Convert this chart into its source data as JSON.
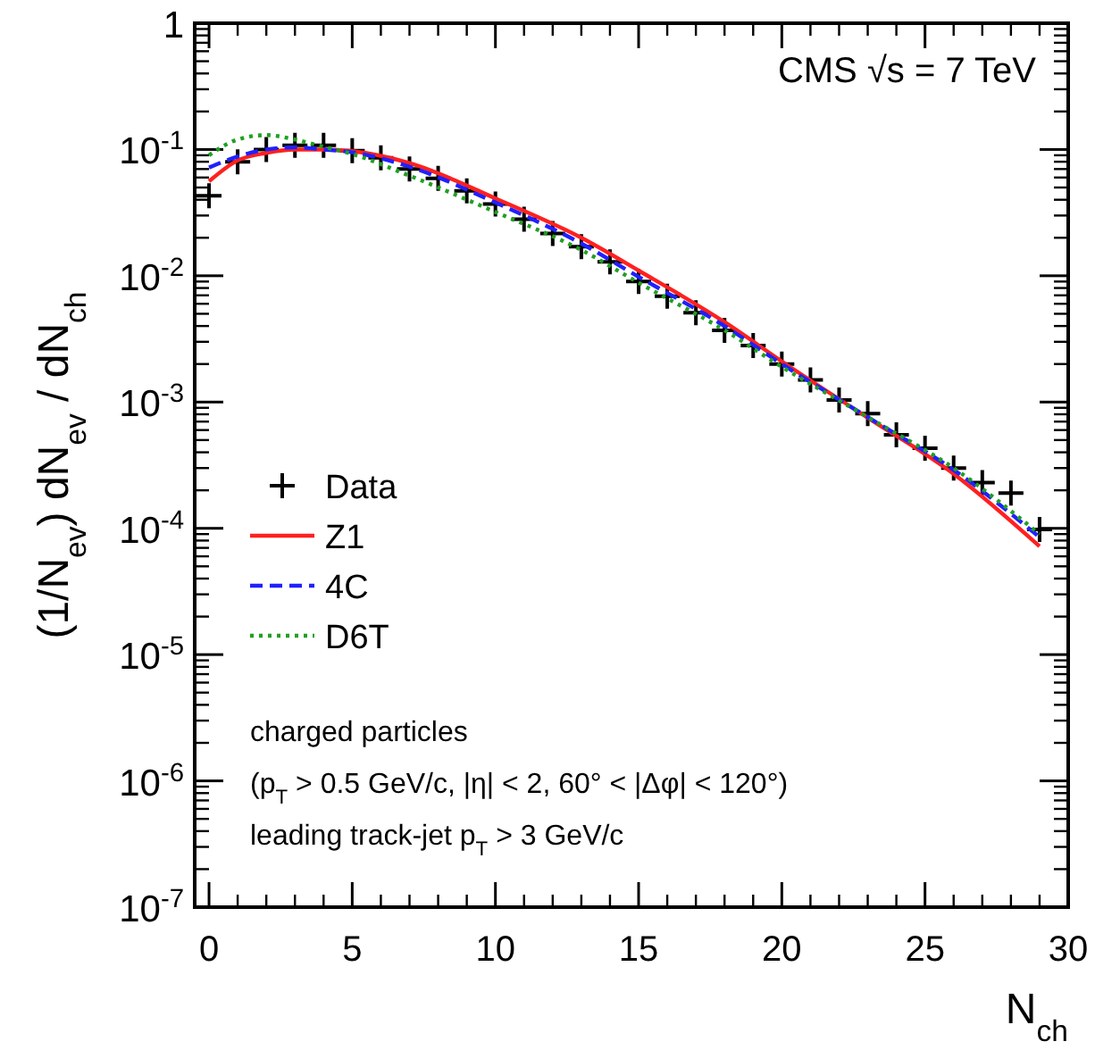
{
  "chart_data": {
    "type": "scatter",
    "xlabel": "N$_{ch}$",
    "ylabel": "(1/N$_{ev}$)  dN$_{ev}$ / dN$_{ch}$",
    "x": [
      0,
      1,
      2,
      3,
      4,
      5,
      6,
      7,
      8,
      9,
      10,
      11,
      12,
      13,
      14,
      15,
      16,
      17,
      18,
      19,
      20,
      21,
      22,
      23,
      24,
      25,
      26,
      27,
      28,
      29
    ],
    "series": [
      {
        "name": "Data",
        "marker": "cross",
        "color": "#000000",
        "values": [
          0.043,
          0.08,
          0.1,
          0.108,
          0.108,
          0.098,
          0.086,
          0.07,
          0.059,
          0.047,
          0.037,
          0.028,
          0.0216,
          0.017,
          0.0129,
          0.009,
          0.0069,
          0.0051,
          0.0037,
          0.0028,
          0.002,
          0.0015,
          0.00104,
          0.00081,
          0.00055,
          0.00043,
          0.0003,
          0.00023,
          0.00019,
          9.8e-05
        ]
      },
      {
        "name": "Z1",
        "type": "line",
        "line_style": "solid",
        "color": "#ff2020",
        "x": [
          0,
          1,
          2,
          3,
          4,
          5,
          7,
          10,
          13,
          15,
          18,
          20,
          23,
          26,
          29
        ],
        "values": [
          0.056,
          0.082,
          0.094,
          0.1,
          0.1,
          0.097,
          0.078,
          0.041,
          0.02,
          0.011,
          0.0043,
          0.0021,
          0.00075,
          0.00027,
          7.2e-05
        ]
      },
      {
        "name": "4C",
        "type": "line",
        "line_style": "dashed",
        "color": "#2020ff",
        "x": [
          0,
          1,
          2,
          3,
          4,
          5,
          7,
          10,
          13,
          15,
          18,
          20,
          23,
          26,
          29
        ],
        "values": [
          0.072,
          0.088,
          0.1,
          0.104,
          0.1,
          0.095,
          0.073,
          0.038,
          0.018,
          0.0098,
          0.004,
          0.002,
          0.00076,
          0.00029,
          8.5e-05
        ]
      },
      {
        "name": "D6T",
        "type": "line",
        "line_style": "dotted",
        "color": "#20a020",
        "x": [
          0,
          1,
          2,
          3,
          4,
          5,
          7,
          10,
          13,
          15,
          18,
          20,
          23,
          26,
          29
        ],
        "values": [
          0.09,
          0.12,
          0.13,
          0.12,
          0.105,
          0.092,
          0.062,
          0.032,
          0.016,
          0.0088,
          0.0037,
          0.0019,
          0.00076,
          0.0003,
          9e-05
        ]
      }
    ],
    "log": true,
    "xlim": [
      -0.5,
      30
    ],
    "xticks": [
      0,
      5,
      10,
      15,
      20,
      25,
      30
    ],
    "ylim": [
      1e-07,
      1
    ],
    "yticks": [
      {
        "value": 1e-07,
        "label": "10$^{-7}$"
      },
      {
        "value": 1e-06,
        "label": "10$^{-6}$"
      },
      {
        "value": 1e-05,
        "label": "10$^{-5}$"
      },
      {
        "value": 0.0001,
        "label": "10$^{-4}$"
      },
      {
        "value": 0.001,
        "label": "10$^{-3}$"
      },
      {
        "value": 0.01,
        "label": "10$^{-2}$"
      },
      {
        "value": 0.1,
        "label": "10$^{-1}$"
      },
      {
        "value": 1,
        "label": "1"
      }
    ],
    "grid": false,
    "legend": "bottom left",
    "annotations": [
      "CMS √s = 7 TeV",
      "charged particles",
      "(p$_{T}$ > 0.5 GeV/c, |η| < 2, 60° < |Δφ| < 120°)",
      "leading track-jet p$_{T}$ > 3 GeV/c"
    ]
  }
}
